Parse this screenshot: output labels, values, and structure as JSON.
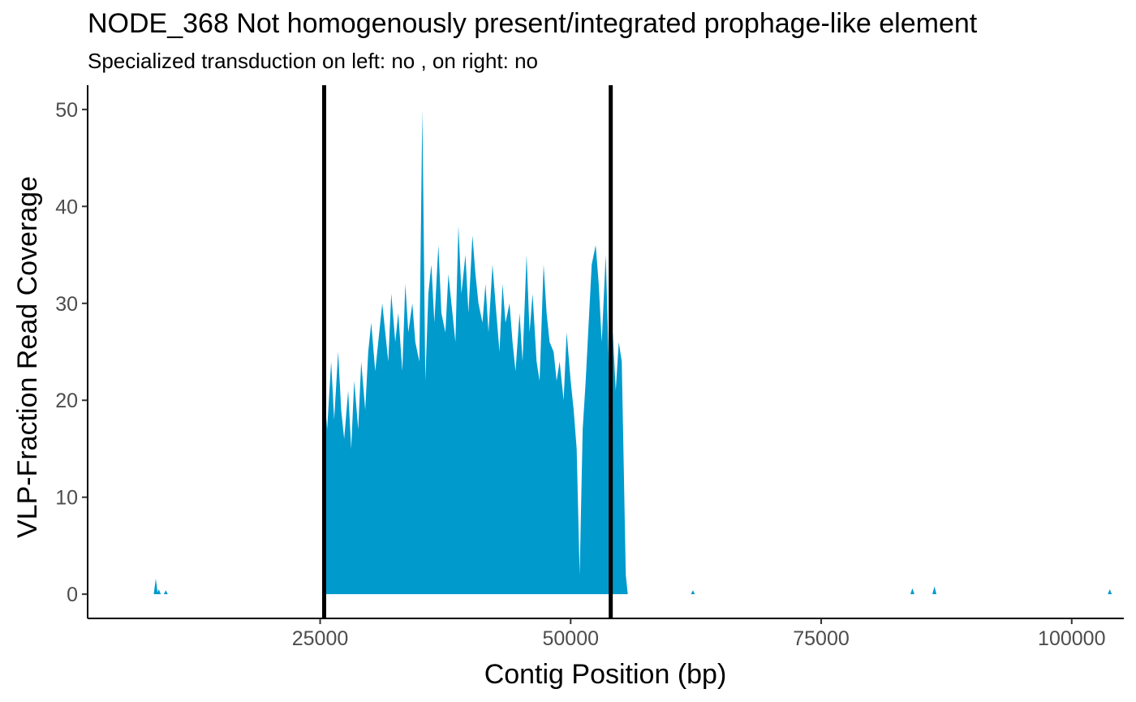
{
  "chart_data": {
    "type": "area",
    "title": "NODE_368 Not homogenously present/integrated prophage-like element",
    "subtitle": "Specialized transduction on left: no , on right: no",
    "xlabel": "Contig Position (bp)",
    "ylabel": "VLP-Fraction Read Coverage",
    "xlim": [
      1800,
      105200
    ],
    "ylim": [
      -2.5,
      52.5
    ],
    "x_ticks": [
      25000,
      50000,
      75000,
      100000
    ],
    "x_tick_labels": [
      "25000",
      "50000",
      "75000",
      "100000"
    ],
    "y_ticks": [
      0,
      10,
      20,
      30,
      40,
      50
    ],
    "y_tick_labels": [
      "0",
      "10",
      "20",
      "30",
      "40",
      "50"
    ],
    "fill_color": "#009ACD",
    "vline_color": "#000000",
    "grid": false,
    "vlines": [
      25400,
      54000
    ],
    "series": [
      {
        "x": [
          25400,
          25700,
          26100,
          26400,
          26800,
          27100,
          27400,
          27800,
          28100,
          28400,
          28800,
          29100,
          29500,
          29800,
          30100,
          30500,
          30800,
          31200,
          31500,
          31800,
          32100,
          32500,
          32800,
          33200,
          33500,
          33800,
          34200,
          34500,
          34900,
          35200,
          35500,
          35800,
          36100,
          36400,
          36800,
          37100,
          37500,
          37800,
          38100,
          38500,
          38800,
          39100,
          39500,
          39800,
          40200,
          40500,
          40800,
          41200,
          41500,
          41800,
          42200,
          42500,
          42900,
          43200,
          43500,
          43900,
          44200,
          44500,
          44900,
          45200,
          45600,
          45900,
          46200,
          46600,
          46900,
          47300,
          47600,
          47900,
          48300,
          48600,
          48900,
          49300,
          49600,
          50000,
          50300,
          50600,
          50900,
          51200,
          51500,
          51800,
          52100,
          52500,
          52800,
          53100,
          53500,
          53800,
          54200,
          54500,
          54800,
          55100,
          55500,
          55700
        ],
        "y": [
          21,
          17,
          24,
          18,
          25,
          19,
          16,
          21,
          15,
          22,
          17,
          24,
          19,
          25,
          28,
          23,
          26,
          30,
          27,
          24,
          31,
          26,
          29,
          23,
          32,
          27,
          30,
          26,
          24,
          50,
          22,
          31,
          34,
          28,
          36,
          29,
          27,
          33,
          30,
          26,
          38,
          31,
          35,
          29,
          37,
          33,
          30,
          28,
          32,
          27,
          34,
          30,
          25,
          32,
          28,
          30,
          26,
          23,
          29,
          24,
          35,
          27,
          31,
          24,
          22,
          34,
          29,
          26,
          25,
          22,
          24,
          20,
          27,
          22,
          19,
          15,
          2,
          17,
          22,
          28,
          34,
          36,
          32,
          26,
          35,
          24,
          27,
          21,
          26,
          24,
          2,
          0
        ]
      },
      {
        "x": [
          8600,
          8900,
          9600,
          62200,
          84100,
          86300,
          103800
        ],
        "y": [
          1.6,
          0.5,
          0.4,
          0.4,
          0.6,
          0.8,
          0.5
        ]
      }
    ]
  }
}
